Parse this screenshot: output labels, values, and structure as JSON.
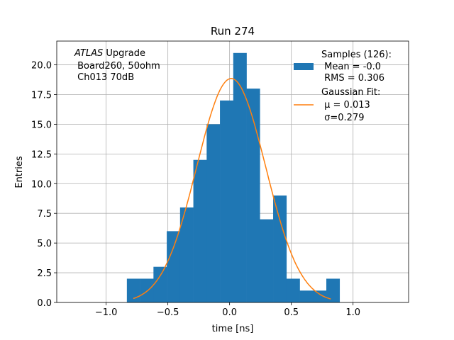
{
  "chart_data": {
    "type": "bar",
    "title": "Run 274",
    "xlabel": "time [ns]",
    "ylabel": "Entries",
    "xlim": [
      -1.4,
      1.45
    ],
    "ylim": [
      0,
      22
    ],
    "grid": true,
    "xticks": [
      -1.0,
      -0.5,
      0.0,
      0.5,
      1.0
    ],
    "xtick_labels": [
      "−1.0",
      "−0.5",
      "0.0",
      "0.5",
      "1.0"
    ],
    "yticks": [
      0,
      2.5,
      5,
      7.5,
      10,
      12.5,
      15,
      17.5,
      20
    ],
    "ytick_labels": [
      "0.0",
      "2.5",
      "5.0",
      "7.5",
      "10.0",
      "12.5",
      "15.0",
      "17.5",
      "20.0"
    ],
    "bin_start": -0.832,
    "bin_width": 0.1077,
    "counts": [
      2,
      2,
      3,
      6,
      8,
      12,
      15,
      17,
      21,
      18,
      7,
      9,
      2,
      1,
      1,
      2
    ],
    "bar_color": "#1f77b4",
    "fit": {
      "mu": 0.013,
      "sigma": 0.279,
      "amplitude": 18.85,
      "x_range": [
        -0.78,
        0.82
      ],
      "color": "#ff7f0e"
    },
    "annotation": {
      "italic": "ATLAS",
      "line1_rest": " Upgrade",
      "line2": " Board260, 50ohm",
      "line3": " Ch013 70dB"
    },
    "legend": {
      "placement": "top-right",
      "samples": [
        "Samples (126):",
        " Mean = -0.0",
        " RMS = 0.306"
      ],
      "fit": [
        "Gaussian Fit:",
        " μ = 0.013",
        " σ=0.279"
      ]
    }
  }
}
